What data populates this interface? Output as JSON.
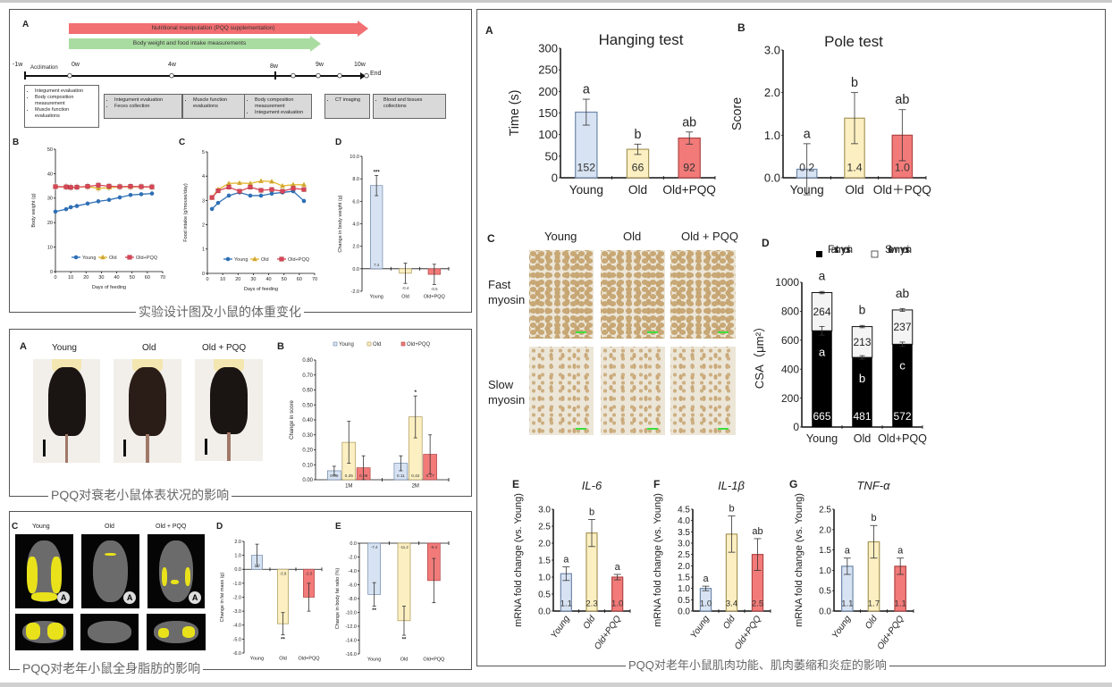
{
  "colors": {
    "young_fill": "#d7e3f3",
    "young_stroke": "#6f87a9",
    "old_fill": "#fcefc1",
    "old_stroke": "#a8975a",
    "pqq_fill": "#f27b79",
    "pqq_stroke": "#b04545",
    "young_line": "#2e6fb5",
    "old_line": "#e5b52a",
    "pqq_line": "#d9455a",
    "scale_bar": "#3ce03c",
    "fat": "#e9e21b"
  },
  "panel1": {
    "caption": "实验设计图及小鼠的体重变化",
    "label_a": "A",
    "label_b": "B",
    "label_c": "C",
    "label_d": "D",
    "arrow_red": "Nutritional manipulation (PQQ supplementation)",
    "arrow_green": "Body weight and food intake measurements",
    "timeline": {
      "m1": "-1w",
      "acclimation": "Acclimation",
      "w0": "0w",
      "w4": "4w",
      "w8": "8w",
      "w9": "9w",
      "w10": "10w",
      "end": "End"
    },
    "boxes": [
      [
        "Integument evaluation",
        "Body composition measurement",
        "Muscle function evaluations"
      ],
      [
        "Integument evaluation",
        "Feces collection"
      ],
      [
        "Muscle function evaluations"
      ],
      [
        "Body composition measurement",
        "Integument evaluation"
      ],
      [
        "CT imaging"
      ],
      [
        "Blood and tissues collections"
      ]
    ]
  },
  "panel2": {
    "caption": "PQQ对衰老小鼠体表状况的影响",
    "label_a": "A",
    "label_b": "B",
    "groups": [
      "Young",
      "Old",
      "Old + PQQ"
    ]
  },
  "panel3": {
    "caption": "PQQ对老年小鼠全身脂肪的影响",
    "label_c": "C",
    "label_d": "D",
    "label_e": "E",
    "groups": [
      "Young",
      "Old",
      "Old + PQQ"
    ],
    "ct_marker": "A"
  },
  "panel4": {
    "caption": "PQQ对老年小鼠肌肉功能、肌肉萎缩和炎症的影响",
    "label_a": "A",
    "label_b": "B",
    "label_c": "C",
    "label_d": "D",
    "label_e": "E",
    "label_f": "F",
    "label_g": "G",
    "histo_cols": [
      "Young",
      "Old",
      "Old + PQQ"
    ],
    "histo_rows": [
      "Fast myosin",
      "Slow myosin"
    ]
  },
  "chart_data": [
    {
      "type": "line",
      "panel": "1B",
      "xlabel": "Days of feeding",
      "ylabel": "Body weight (g)",
      "xlim": [
        0,
        70
      ],
      "ylim": [
        0,
        50
      ],
      "xticks": [
        "0",
        "10",
        "20",
        "30",
        "40",
        "50",
        "60",
        "70"
      ],
      "yticks": [
        "0",
        "10",
        "20",
        "30",
        "40",
        "50"
      ],
      "legend": "bottom",
      "x": [
        0,
        7,
        10,
        14,
        21,
        28,
        35,
        42,
        49,
        56,
        63
      ],
      "series": [
        {
          "name": "Young",
          "marker": "circle",
          "values": [
            24.5,
            25.5,
            26.3,
            26.8,
            27.8,
            28.7,
            29.3,
            30.3,
            31.3,
            31.6,
            31.9
          ]
        },
        {
          "name": "Old",
          "marker": "triangle",
          "values": [
            34.7,
            34.6,
            34.5,
            34.5,
            34.7,
            34.0,
            34.3,
            34.6,
            34.6,
            34.6,
            34.5
          ]
        },
        {
          "name": "Old+PQQ",
          "marker": "square",
          "values": [
            34.7,
            34.6,
            34.4,
            34.5,
            34.8,
            35.3,
            34.9,
            34.7,
            34.8,
            34.7,
            34.6
          ]
        }
      ]
    },
    {
      "type": "line",
      "panel": "1C",
      "xlabel": "Days of feeding",
      "ylabel": "Food intake (g/mouse/day)",
      "xlim": [
        0,
        70
      ],
      "ylim": [
        0,
        5
      ],
      "xticks": [
        "0",
        "10",
        "20",
        "30",
        "40",
        "50",
        "60",
        "70"
      ],
      "yticks": [
        "0",
        "1",
        "2",
        "3",
        "4",
        "5"
      ],
      "legend": "bottom",
      "x": [
        3,
        7,
        14,
        21,
        28,
        35,
        42,
        49,
        56,
        63
      ],
      "series": [
        {
          "name": "Young",
          "marker": "circle",
          "values": [
            2.65,
            2.9,
            3.2,
            3.33,
            3.2,
            3.2,
            3.28,
            3.33,
            3.38,
            2.98
          ]
        },
        {
          "name": "Old",
          "marker": "triangle",
          "values": [
            3.12,
            3.45,
            3.7,
            3.72,
            3.7,
            3.8,
            3.78,
            3.6,
            3.65,
            3.65
          ]
        },
        {
          "name": "Old+PQQ",
          "marker": "square",
          "values": [
            3.12,
            3.4,
            3.55,
            3.38,
            3.55,
            3.42,
            3.45,
            3.38,
            3.5,
            3.45
          ]
        }
      ]
    },
    {
      "type": "bar",
      "panel": "1D",
      "ylabel": "Change in body weight (g)",
      "ylim": [
        -2,
        10
      ],
      "yticks": [
        "-2.0",
        "0.0",
        "2.0",
        "4.0",
        "6.0",
        "8.0",
        "10.0"
      ],
      "categories": [
        "Young",
        "Old",
        "Old+PQQ"
      ],
      "values": [
        7.4,
        -0.4,
        -0.5
      ],
      "errors": [
        0.9,
        0.9,
        0.9
      ],
      "labels": [
        "7.4",
        "-0.4",
        "-0.5"
      ],
      "sig": [
        "***",
        "",
        ""
      ]
    },
    {
      "type": "bar",
      "panel": "2B",
      "ylabel": "Change in score",
      "ylim": [
        0,
        0.8
      ],
      "yticks": [
        "0.00",
        "0.10",
        "0.20",
        "0.30",
        "0.40",
        "0.50",
        "0.60",
        "0.70",
        "0.80"
      ],
      "legend": "top",
      "categories": [
        "1M",
        "2M"
      ],
      "series": [
        {
          "name": "Young",
          "values": [
            0.06,
            0.11
          ],
          "errors": [
            0.03,
            0.05
          ],
          "labels": [
            "0.06",
            "0.11"
          ],
          "sig": [
            "",
            ""
          ]
        },
        {
          "name": "Old",
          "values": [
            0.25,
            0.42
          ],
          "errors": [
            0.14,
            0.14
          ],
          "labels": [
            "0.25",
            "0.42"
          ],
          "sig": [
            "",
            "*"
          ]
        },
        {
          "name": "Old+PQQ",
          "values": [
            0.08,
            0.17
          ],
          "errors": [
            0.08,
            0.13
          ],
          "labels": [
            "0.08",
            "0.17"
          ],
          "sig": [
            "",
            ""
          ]
        }
      ]
    },
    {
      "type": "bar",
      "panel": "3D",
      "ylabel": "Change in fat mass (g)",
      "ylim": [
        -6,
        2
      ],
      "yticks": [
        "-6.0",
        "-5.0",
        "-4.0",
        "-3.0",
        "-2.0",
        "-1.0",
        "0.0",
        "1.0",
        "2.0"
      ],
      "categories": [
        "Young",
        "Old",
        "Old+PQQ"
      ],
      "values": [
        1.0,
        -3.9,
        -2.0
      ],
      "errors": [
        0.8,
        0.8,
        1.0
      ],
      "labels": [
        "1.0",
        "-3.9",
        "-2.0"
      ],
      "sig": [
        "",
        "**",
        ""
      ]
    },
    {
      "type": "bar",
      "panel": "3E",
      "ylabel": "Change in body fat ratio (%)",
      "ylim": [
        -16,
        0
      ],
      "yticks": [
        "-16.0",
        "-14.0",
        "-12.0",
        "-10.0",
        "-8.0",
        "-6.0",
        "-4.0",
        "-2.0",
        "0.0"
      ],
      "categories": [
        "Young",
        "Old",
        "Old+PQQ"
      ],
      "values": [
        -7.4,
        -11.2,
        -5.4
      ],
      "errors": [
        1.7,
        2.1,
        3.2
      ],
      "labels": [
        "-7.4",
        "-11.2",
        "-5.4"
      ],
      "sig": [
        "**",
        "**",
        ""
      ]
    },
    {
      "type": "bar",
      "panel": "4A",
      "title": "Hanging test",
      "ylabel": "Time (s)",
      "ylim": [
        0,
        300
      ],
      "yticks": [
        "0",
        "50",
        "100",
        "150",
        "200",
        "250",
        "300"
      ],
      "categories": [
        "Young",
        "Old",
        "Old+PQQ"
      ],
      "values": [
        152,
        66,
        92
      ],
      "errors": [
        30,
        12,
        14
      ],
      "labels": [
        "152",
        "66",
        "92"
      ],
      "letters": [
        "a",
        "b",
        "ab"
      ]
    },
    {
      "type": "bar",
      "panel": "4B",
      "title": "Pole test",
      "ylabel": "Score",
      "ylim": [
        0,
        3
      ],
      "yticks": [
        "0.0",
        "1.0",
        "2.0",
        "3.0"
      ],
      "categories": [
        "Young",
        "Old",
        "Old＋PQQ"
      ],
      "values": [
        0.2,
        1.4,
        1.0
      ],
      "errors": [
        0.6,
        0.6,
        0.6
      ],
      "labels": [
        "0.2",
        "1.4",
        "1.0"
      ],
      "letters": [
        "a",
        "b",
        "ab"
      ]
    },
    {
      "type": "stacked-bar",
      "panel": "4D",
      "ylabel": "CSA（μm²）",
      "ylim": [
        0,
        1000
      ],
      "yticks": [
        "0",
        "200",
        "400",
        "600",
        "800",
        "1000"
      ],
      "legend": "top",
      "categories": [
        "Young",
        "Old",
        "Old+PQQ"
      ],
      "series": [
        {
          "name": "Fast myosin",
          "values": [
            665,
            481,
            572
          ],
          "labels": [
            "665",
            "481",
            "572"
          ],
          "letters": [
            "a",
            "b",
            "c"
          ],
          "errors": [
            30,
            12,
            15
          ]
        },
        {
          "name": "Slow myosin",
          "values": [
            264,
            213,
            237
          ],
          "labels": [
            "264",
            "213",
            "237"
          ],
          "letters": [
            "a",
            "b",
            "ab"
          ],
          "errors": [
            8,
            8,
            10
          ]
        }
      ]
    },
    {
      "type": "bar",
      "panel": "4E",
      "title": "IL-6",
      "ylabel": "mRNA fold change (vs. Young)",
      "ylim": [
        0,
        3
      ],
      "yticks": [
        "0.0",
        "0.5",
        "1.0",
        "1.5",
        "2.0",
        "2.5",
        "3.0"
      ],
      "categories": [
        "Young",
        "Old",
        "Old+PQQ"
      ],
      "values": [
        1.1,
        2.3,
        1.0
      ],
      "errors": [
        0.2,
        0.4,
        0.08
      ],
      "labels": [
        "1.1",
        "2.3",
        "1.0"
      ],
      "letters": [
        "a",
        "b",
        "a"
      ]
    },
    {
      "type": "bar",
      "panel": "4F",
      "title": "IL-1β",
      "ylabel": "mRNA fold change (vs. Young)",
      "ylim": [
        0,
        4.5
      ],
      "yticks": [
        "0.0",
        "0.5",
        "1.0",
        "1.5",
        "2.0",
        "2.5",
        "3.0",
        "3.5",
        "4.0",
        "4.5"
      ],
      "categories": [
        "Young",
        "Old",
        "Old+PQQ"
      ],
      "values": [
        1.0,
        3.4,
        2.5
      ],
      "errors": [
        0.1,
        0.8,
        0.7
      ],
      "labels": [
        "1.0",
        "3.4",
        "2.5"
      ],
      "letters": [
        "a",
        "b",
        "ab"
      ]
    },
    {
      "type": "bar",
      "panel": "4G",
      "title": "TNF-α",
      "ylabel": "mRNA fold change (vs. Young)",
      "ylim": [
        0,
        2.5
      ],
      "yticks": [
        "0.0",
        "0.5",
        "1.0",
        "1.5",
        "2.0",
        "2.5"
      ],
      "categories": [
        "Young",
        "Old",
        "Old+PQQ"
      ],
      "values": [
        1.1,
        1.7,
        1.1
      ],
      "errors": [
        0.2,
        0.4,
        0.2
      ],
      "labels": [
        "1.1",
        "1.7",
        "1.1"
      ],
      "letters": [
        "a",
        "b",
        "a"
      ]
    }
  ]
}
